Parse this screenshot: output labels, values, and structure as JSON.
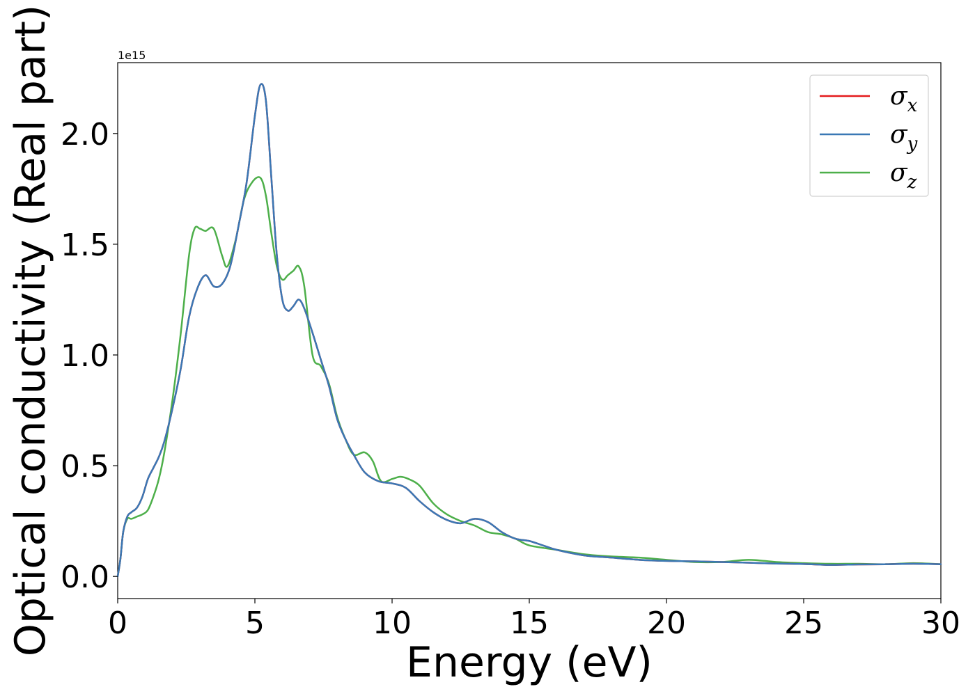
{
  "chart_data": {
    "type": "line",
    "xlabel": "Energy (eV)",
    "ylabel": "Optical conductivity (Real part)",
    "y_offset_text": "1e15",
    "xlim": [
      0,
      30
    ],
    "ylim": [
      -0.1,
      2.32
    ],
    "x_ticks": [
      0,
      5,
      10,
      15,
      20,
      25,
      30
    ],
    "x_tick_labels": [
      "0",
      "5",
      "10",
      "15",
      "20",
      "25",
      "30"
    ],
    "y_ticks": [
      0.0,
      0.5,
      1.0,
      1.5,
      2.0
    ],
    "y_tick_labels": [
      "0.0",
      "0.5",
      "1.0",
      "1.5",
      "2.0"
    ],
    "grid": false,
    "legend_position": "top-right",
    "series": [
      {
        "name": "σx",
        "legend_base": "σ",
        "legend_sub": "x",
        "color": "#e41a1c",
        "x": [
          0,
          0.1,
          0.2,
          0.35,
          0.5,
          0.7,
          0.9,
          1.1,
          1.3,
          1.5,
          1.7,
          2.0,
          2.3,
          2.6,
          2.9,
          3.2,
          3.5,
          3.8,
          4.1,
          4.4,
          4.7,
          5.0,
          5.2,
          5.4,
          5.6,
          5.8,
          6.0,
          6.2,
          6.4,
          6.6,
          6.8,
          7.1,
          7.4,
          7.7,
          8.0,
          8.3,
          8.6,
          9.0,
          9.5,
          10.0,
          10.5,
          11.0,
          11.5,
          12.0,
          12.5,
          13.0,
          13.5,
          14.0,
          14.5,
          15.0,
          15.5,
          16.0,
          17.0,
          18.0,
          19.0,
          20.0,
          21.0,
          22.0,
          23.0,
          24.0,
          25.0,
          26.0,
          27.0,
          28.0,
          29.0,
          30.0
        ],
        "values": [
          0.0,
          0.08,
          0.2,
          0.27,
          0.29,
          0.31,
          0.36,
          0.44,
          0.49,
          0.54,
          0.61,
          0.76,
          0.94,
          1.17,
          1.3,
          1.36,
          1.31,
          1.32,
          1.4,
          1.58,
          1.78,
          2.08,
          2.22,
          2.15,
          1.8,
          1.45,
          1.25,
          1.2,
          1.22,
          1.25,
          1.21,
          1.1,
          0.98,
          0.86,
          0.71,
          0.62,
          0.55,
          0.47,
          0.43,
          0.42,
          0.4,
          0.34,
          0.29,
          0.255,
          0.24,
          0.26,
          0.245,
          0.2,
          0.17,
          0.16,
          0.14,
          0.12,
          0.095,
          0.085,
          0.075,
          0.07,
          0.068,
          0.065,
          0.062,
          0.058,
          0.056,
          0.052,
          0.054,
          0.055,
          0.057,
          0.055
        ]
      },
      {
        "name": "σy",
        "legend_base": "σ",
        "legend_sub": "y",
        "color": "#3a78b5",
        "x": [
          0,
          0.1,
          0.2,
          0.35,
          0.5,
          0.7,
          0.9,
          1.1,
          1.3,
          1.5,
          1.7,
          2.0,
          2.3,
          2.6,
          2.9,
          3.2,
          3.5,
          3.8,
          4.1,
          4.4,
          4.7,
          5.0,
          5.2,
          5.4,
          5.6,
          5.8,
          6.0,
          6.2,
          6.4,
          6.6,
          6.8,
          7.1,
          7.4,
          7.7,
          8.0,
          8.3,
          8.6,
          9.0,
          9.5,
          10.0,
          10.5,
          11.0,
          11.5,
          12.0,
          12.5,
          13.0,
          13.5,
          14.0,
          14.5,
          15.0,
          15.5,
          16.0,
          17.0,
          18.0,
          19.0,
          20.0,
          21.0,
          22.0,
          23.0,
          24.0,
          25.0,
          26.0,
          27.0,
          28.0,
          29.0,
          30.0
        ],
        "values": [
          0.0,
          0.08,
          0.2,
          0.27,
          0.29,
          0.31,
          0.36,
          0.44,
          0.49,
          0.54,
          0.61,
          0.76,
          0.94,
          1.17,
          1.3,
          1.36,
          1.31,
          1.32,
          1.4,
          1.58,
          1.78,
          2.08,
          2.22,
          2.15,
          1.8,
          1.45,
          1.25,
          1.2,
          1.22,
          1.25,
          1.21,
          1.1,
          0.98,
          0.86,
          0.71,
          0.62,
          0.55,
          0.47,
          0.43,
          0.42,
          0.4,
          0.34,
          0.29,
          0.255,
          0.24,
          0.26,
          0.245,
          0.2,
          0.17,
          0.16,
          0.14,
          0.12,
          0.095,
          0.085,
          0.075,
          0.07,
          0.068,
          0.065,
          0.062,
          0.058,
          0.056,
          0.052,
          0.054,
          0.055,
          0.057,
          0.055
        ]
      },
      {
        "name": "σz",
        "legend_base": "σ",
        "legend_sub": "z",
        "color": "#4daf4a",
        "x": [
          0,
          0.1,
          0.2,
          0.35,
          0.5,
          0.7,
          0.9,
          1.1,
          1.3,
          1.5,
          1.7,
          2.0,
          2.3,
          2.6,
          2.8,
          3.0,
          3.2,
          3.5,
          3.8,
          4.0,
          4.3,
          4.6,
          4.9,
          5.2,
          5.4,
          5.6,
          5.8,
          6.0,
          6.2,
          6.4,
          6.6,
          6.8,
          7.1,
          7.4,
          7.7,
          8.0,
          8.3,
          8.6,
          9.0,
          9.3,
          9.6,
          10.0,
          10.3,
          10.6,
          11.0,
          11.5,
          12.0,
          12.5,
          13.0,
          13.5,
          14.0,
          14.5,
          15.0,
          16.0,
          17.0,
          18.0,
          19.0,
          20.0,
          21.0,
          22.0,
          23.0,
          24.0,
          25.0,
          26.0,
          27.0,
          28.0,
          29.0,
          30.0
        ],
        "values": [
          0.0,
          0.08,
          0.2,
          0.26,
          0.26,
          0.27,
          0.28,
          0.3,
          0.36,
          0.44,
          0.56,
          0.8,
          1.1,
          1.45,
          1.57,
          1.57,
          1.56,
          1.57,
          1.45,
          1.4,
          1.52,
          1.7,
          1.78,
          1.8,
          1.72,
          1.55,
          1.4,
          1.34,
          1.36,
          1.38,
          1.4,
          1.31,
          1.0,
          0.95,
          0.87,
          0.72,
          0.62,
          0.55,
          0.56,
          0.52,
          0.43,
          0.44,
          0.45,
          0.44,
          0.41,
          0.33,
          0.28,
          0.25,
          0.23,
          0.2,
          0.19,
          0.17,
          0.14,
          0.12,
          0.1,
          0.09,
          0.085,
          0.075,
          0.065,
          0.065,
          0.075,
          0.065,
          0.06,
          0.057,
          0.057,
          0.055,
          0.06,
          0.055
        ]
      }
    ]
  }
}
